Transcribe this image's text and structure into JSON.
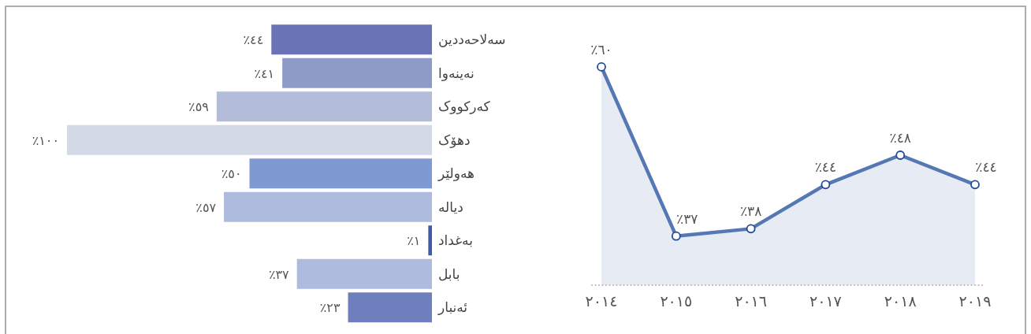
{
  "chart_data": [
    {
      "type": "bar",
      "orientation": "horizontal",
      "categories": [
        "سەلاحەددین",
        "نەینەوا",
        "کەرکووک",
        "دهۆک",
        "هەولێر",
        "دیالە",
        "بەغداد",
        "بابل",
        "ئەنبار"
      ],
      "values": [
        44,
        41,
        59,
        100,
        50,
        57,
        1,
        37,
        23
      ],
      "colors": [
        "#6874b5",
        "#8f9bc7",
        "#b3bcd9",
        "#d3d9e6",
        "#7f9ad3",
        "#aebbdf",
        "#3f5aa8",
        "#aebbdf",
        "#6f7fbd"
      ],
      "value_labels": [
        "٪٤٤",
        "٪٤١",
        "٪٥٩",
        "٪١٠٠",
        "٪٥٠",
        "٪٥٧",
        "٪١",
        "٪٣٧",
        "٪٢٣"
      ]
    },
    {
      "type": "area",
      "marker": "circle",
      "categories": [
        "٢٠١٤",
        "٢٠١٥",
        "٢٠١٦",
        "٢٠١٧",
        "٢٠١٨",
        "٢٠١٩"
      ],
      "values": [
        60,
        37,
        38,
        44,
        48,
        44
      ],
      "color": "#5577b3",
      "value_labels": [
        "٪٦٠",
        "٪٣٧",
        "٪٣٨",
        "٪٤٤",
        "٪٤٨",
        "٪٤٤"
      ]
    }
  ]
}
